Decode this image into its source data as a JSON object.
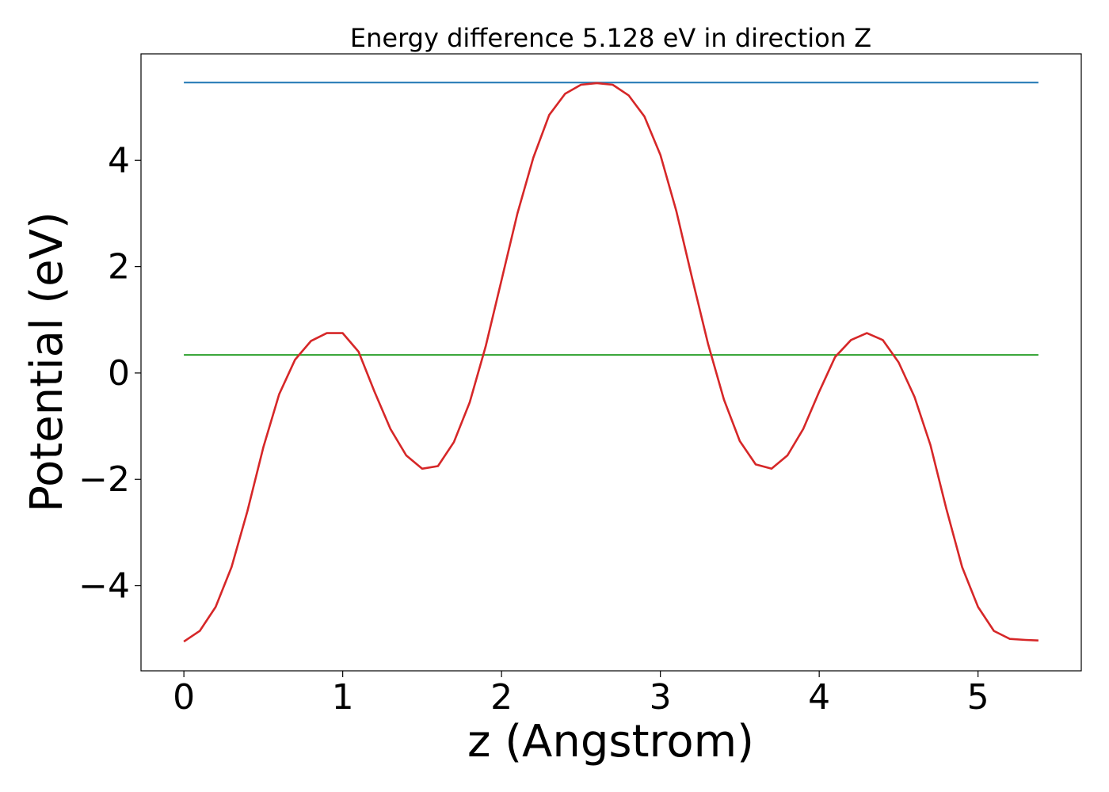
{
  "chart_data": {
    "type": "line",
    "title": "Energy difference 5.128 eV in direction Z",
    "xlabel": "z (Angstrom)",
    "ylabel": "Potential (eV)",
    "xlim": [
      -0.27,
      5.65
    ],
    "ylim": [
      -5.6,
      6.0
    ],
    "grid": false,
    "x_ticks": [
      0,
      1,
      2,
      3,
      4,
      5
    ],
    "x_tick_labels": [
      "0",
      "1",
      "2",
      "3",
      "4",
      "5"
    ],
    "y_ticks": [
      -4,
      -2,
      0,
      2,
      4
    ],
    "y_tick_labels": [
      "−4",
      "−2",
      "0",
      "2",
      "4"
    ],
    "series": [
      {
        "color": "#1f77b4",
        "x": [
          0,
          5.38
        ],
        "y": [
          5.46,
          5.46
        ]
      },
      {
        "color": "#2ca02c",
        "x": [
          0,
          5.38
        ],
        "y": [
          0.34,
          0.34
        ]
      },
      {
        "color": "#d62728",
        "x": [
          0,
          0.1,
          0.2,
          0.3,
          0.4,
          0.5,
          0.6,
          0.7,
          0.8,
          0.9,
          1.0,
          1.1,
          1.2,
          1.3,
          1.4,
          1.5,
          1.6,
          1.7,
          1.8,
          1.9,
          2.0,
          2.1,
          2.2,
          2.3,
          2.4,
          2.5,
          2.6,
          2.7,
          2.8,
          2.9,
          3.0,
          3.1,
          3.2,
          3.3,
          3.4,
          3.5,
          3.6,
          3.7,
          3.8,
          3.9,
          4.0,
          4.1,
          4.2,
          4.3,
          4.4,
          4.5,
          4.6,
          4.7,
          4.8,
          4.9,
          5.0,
          5.1,
          5.2,
          5.3,
          5.38
        ],
        "y": [
          -5.05,
          -4.85,
          -4.4,
          -3.65,
          -2.6,
          -1.4,
          -0.4,
          0.25,
          0.6,
          0.75,
          0.75,
          0.4,
          -0.35,
          -1.05,
          -1.55,
          -1.8,
          -1.75,
          -1.3,
          -0.55,
          0.5,
          1.75,
          3.0,
          4.05,
          4.85,
          5.25,
          5.42,
          5.45,
          5.42,
          5.22,
          4.82,
          4.1,
          3.05,
          1.78,
          0.55,
          -0.5,
          -1.28,
          -1.72,
          -1.8,
          -1.55,
          -1.05,
          -0.35,
          0.3,
          0.62,
          0.75,
          0.62,
          0.2,
          -0.45,
          -1.35,
          -2.55,
          -3.65,
          -4.4,
          -4.85,
          -5.0,
          -5.02,
          -5.03
        ]
      }
    ]
  }
}
